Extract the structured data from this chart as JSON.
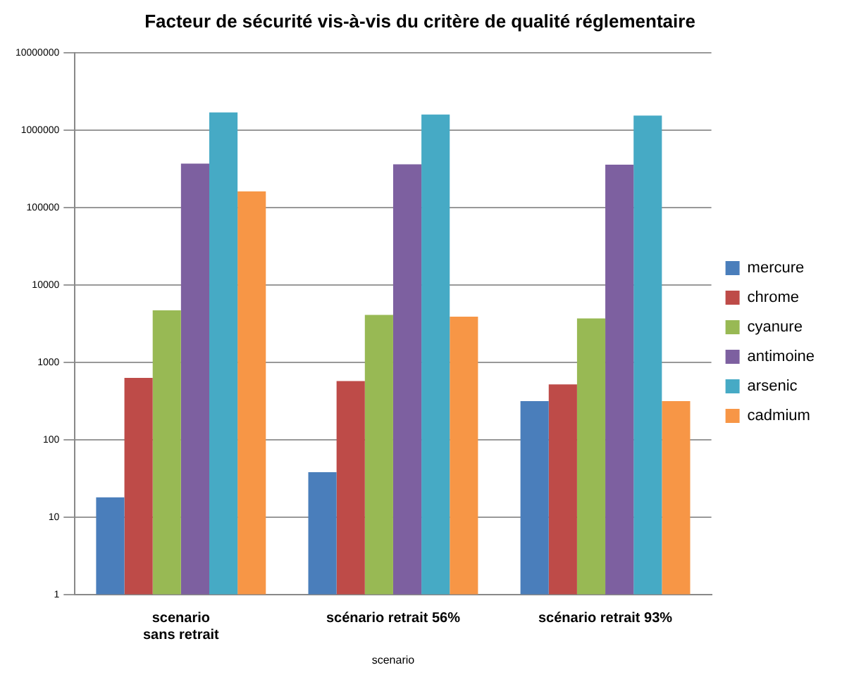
{
  "chart_data": {
    "type": "bar",
    "title": "Facteur de sécurité vis-à-vis du critère de qualité réglementaire",
    "xlabel": "scenario",
    "categories": [
      "scenario\nsans retrait",
      "scénario retrait 56%",
      "scénario retrait 93%"
    ],
    "series": [
      {
        "name": "mercure",
        "color": "#4a7ebb",
        "values": [
          18,
          38,
          316
        ]
      },
      {
        "name": "chrome",
        "color": "#be4b48",
        "values": [
          630,
          575,
          520
        ]
      },
      {
        "name": "cyanure",
        "color": "#98b954",
        "values": [
          4700,
          4100,
          3700
        ]
      },
      {
        "name": "antimoine",
        "color": "#7d60a0",
        "values": [
          370000,
          363000,
          360000
        ]
      },
      {
        "name": "arsenic",
        "color": "#46aac5",
        "values": [
          1700000,
          1600000,
          1550000
        ]
      },
      {
        "name": "cadmium",
        "color": "#f79646",
        "values": [
          162000,
          3900,
          316
        ]
      }
    ],
    "log": true,
    "ylim": [
      1,
      10000000
    ],
    "yticks": [
      1,
      10,
      100,
      1000,
      10000,
      100000,
      1000000,
      10000000
    ],
    "grid": "y",
    "legend": "right"
  }
}
